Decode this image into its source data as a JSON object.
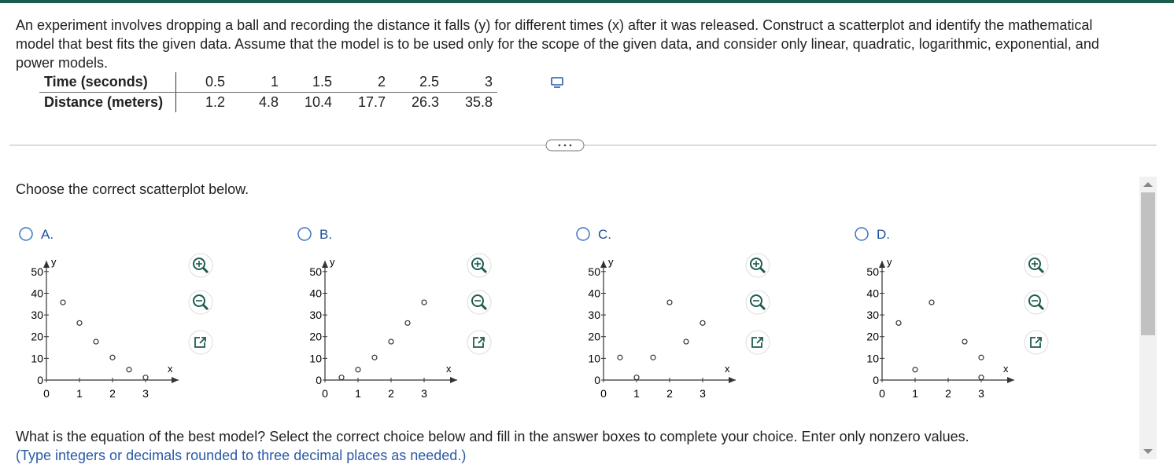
{
  "question": {
    "text": "An experiment involves dropping a ball and recording the distance it falls (y) for different times  (x) after it was released. Construct a scatterplot and identify the mathematical model that best fits the given data. Assume that the model is to be used only for the scope of the given data, and consider only linear, quadratic, logarithmic, exponential, and power models.",
    "table": {
      "rows": [
        [
          "Time (seconds)",
          0.5,
          1,
          1.5,
          2,
          2.5,
          3
        ],
        [
          "Distance (meters)",
          1.2,
          4.8,
          10.4,
          17.7,
          26.3,
          35.8
        ]
      ]
    }
  },
  "prompt": "Choose the correct scatterplot below.",
  "options": [
    {
      "label": "A.",
      "plot": {
        "type": "scatter",
        "x": [
          0.5,
          1,
          1.5,
          2,
          2.5,
          3
        ],
        "y": [
          35.8,
          26.3,
          17.7,
          10.4,
          4.8,
          1.2
        ],
        "xlim": [
          0,
          4
        ],
        "ylim": [
          0,
          55
        ],
        "xticks": [
          0,
          1,
          2,
          3
        ],
        "yticks": [
          0,
          10,
          20,
          30,
          40,
          50
        ],
        "xlabel": "x",
        "ylabel": "y"
      }
    },
    {
      "label": "B.",
      "plot": {
        "type": "scatter",
        "x": [
          0.5,
          1,
          1.5,
          2,
          2.5,
          3
        ],
        "y": [
          1.2,
          4.8,
          10.4,
          17.7,
          26.3,
          35.8
        ],
        "xlim": [
          0,
          4
        ],
        "ylim": [
          0,
          55
        ],
        "xticks": [
          0,
          1,
          2,
          3
        ],
        "yticks": [
          0,
          10,
          20,
          30,
          40,
          50
        ],
        "xlabel": "x",
        "ylabel": "y"
      }
    },
    {
      "label": "C.",
      "plot": {
        "type": "scatter",
        "x": [
          0.5,
          1,
          1.5,
          2,
          2.5,
          3
        ],
        "y": [
          10.4,
          1.2,
          10.4,
          35.8,
          17.7,
          26.3
        ],
        "xlim": [
          0,
          4
        ],
        "ylim": [
          0,
          55
        ],
        "xticks": [
          0,
          1,
          2,
          3
        ],
        "yticks": [
          0,
          10,
          20,
          30,
          40,
          50
        ],
        "xlabel": "x",
        "ylabel": "y"
      }
    },
    {
      "label": "D.",
      "plot": {
        "type": "scatter",
        "x": [
          0.5,
          1,
          1.5,
          2.5,
          3,
          3
        ],
        "y": [
          26.3,
          4.8,
          35.8,
          17.7,
          10.4,
          1.2
        ],
        "xlim": [
          0,
          4
        ],
        "ylim": [
          0,
          55
        ],
        "xticks": [
          0,
          1,
          2,
          3
        ],
        "yticks": [
          0,
          10,
          20,
          30,
          40,
          50
        ],
        "xlabel": "x",
        "ylabel": "y"
      }
    }
  ],
  "followup": {
    "text": "What is the equation of the best model? Select the correct choice below and fill in the answer boxes to complete your choice. Enter only nonzero values.",
    "hint": "(Type integers or decimals rounded to three decimal places as needed.)"
  }
}
